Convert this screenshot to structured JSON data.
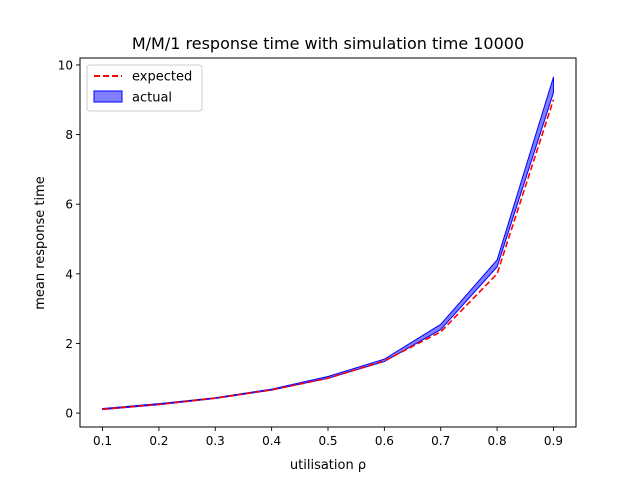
{
  "chart_data": {
    "type": "area",
    "title": "M/M/1 response time with simulation time 10000",
    "xlabel": "utilisation ρ",
    "ylabel": "mean response time",
    "xlim": [
      0.06,
      0.94
    ],
    "ylim": [
      -0.4,
      10.2
    ],
    "xticks": [
      0.1,
      0.2,
      0.3,
      0.4,
      0.5,
      0.6,
      0.7,
      0.8,
      0.9
    ],
    "xtick_labels": [
      "0.1",
      "0.2",
      "0.3",
      "0.4",
      "0.5",
      "0.6",
      "0.7",
      "0.8",
      "0.9"
    ],
    "yticks": [
      0,
      2,
      4,
      6,
      8,
      10
    ],
    "ytick_labels": [
      "0",
      "2",
      "4",
      "6",
      "8",
      "10"
    ],
    "x": [
      0.1,
      0.2,
      0.3,
      0.4,
      0.5,
      0.6,
      0.7,
      0.8,
      0.9
    ],
    "series": [
      {
        "name": "expected",
        "style": "dashed-line",
        "color": "#ff0000",
        "values": [
          0.111,
          0.25,
          0.429,
          0.667,
          1.0,
          1.5,
          2.333,
          4.0,
          9.0
        ]
      },
      {
        "name": "actual",
        "style": "filled-band",
        "color": "#0000ff",
        "lower": [
          0.1,
          0.24,
          0.42,
          0.66,
          1.0,
          1.48,
          2.4,
          4.2,
          9.2
        ],
        "upper": [
          0.13,
          0.27,
          0.44,
          0.69,
          1.05,
          1.55,
          2.55,
          4.4,
          9.65
        ]
      }
    ],
    "legend": {
      "position": "upper-left",
      "entries": [
        "expected",
        "actual"
      ]
    },
    "grid": false
  }
}
